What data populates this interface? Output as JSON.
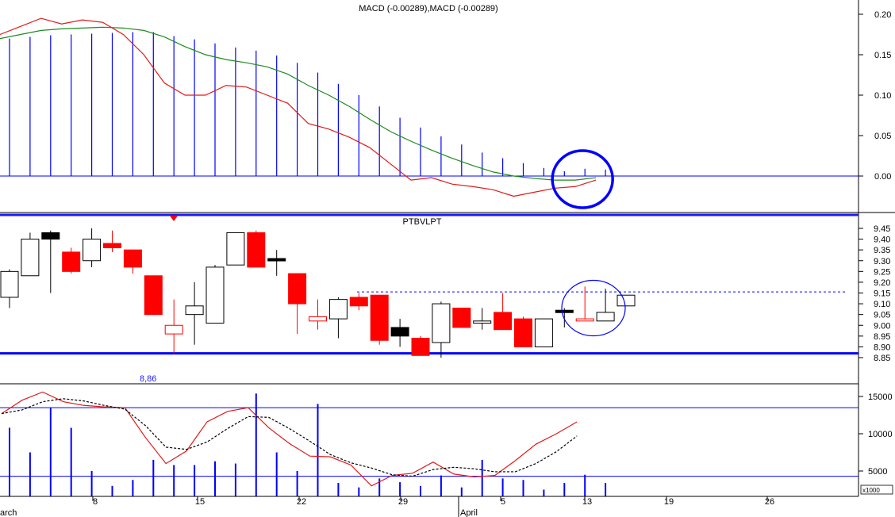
{
  "colors": {
    "accent_blue": "#0000ff",
    "red": "#ff0000",
    "line_red": "#e21a1a",
    "signal_green": "#1e8a1e",
    "grid": "#000000"
  },
  "chart_data": [
    {
      "type": "bar",
      "title": "MACD (-0.00289),MACD (-0.00289)",
      "ylim": [
        -0.05,
        0.22
      ],
      "yticks": [
        "0.20",
        "0.15",
        "0.10",
        "0.05",
        "0.00"
      ],
      "ytick_values": [
        0.2,
        0.15,
        0.1,
        0.05,
        0.0
      ],
      "histogram": [
        0.17,
        0.172,
        0.174,
        0.175,
        0.176,
        0.177,
        0.178,
        0.178,
        0.173,
        0.169,
        0.164,
        0.159,
        0.155,
        0.149,
        0.14,
        0.128,
        0.114,
        0.1,
        0.086,
        0.072,
        0.06,
        0.049,
        0.039,
        0.029,
        0.022,
        0.016,
        0.01,
        0.006,
        0.009,
        0.008
      ],
      "series": [
        {
          "color": "red",
          "values": [
            0.175,
            0.185,
            0.195,
            0.188,
            0.193,
            0.19,
            0.175,
            0.15,
            0.115,
            0.1,
            0.1,
            0.112,
            0.11,
            0.1,
            0.09,
            0.065,
            0.058,
            0.048,
            0.035,
            0.015,
            -0.005,
            -0.002,
            -0.01,
            -0.013,
            -0.017,
            -0.025,
            -0.02,
            -0.015,
            -0.013,
            -0.005
          ]
        },
        {
          "color": "green",
          "values": [
            0.17,
            0.175,
            0.18,
            0.182,
            0.183,
            0.184,
            0.183,
            0.18,
            0.172,
            0.16,
            0.15,
            0.144,
            0.14,
            0.135,
            0.126,
            0.112,
            0.1,
            0.086,
            0.07,
            0.055,
            0.043,
            0.032,
            0.022,
            0.013,
            0.005,
            0.0,
            -0.003,
            -0.005,
            -0.005,
            -0.002
          ]
        }
      ],
      "zero_line": 0.0,
      "annotation": {
        "type": "circle",
        "center_index": 28.5,
        "value": 0.0
      }
    },
    {
      "type": "candlestick",
      "title": "PTBVLPT",
      "ylim": [
        8.82,
        9.47
      ],
      "yticks": [
        "9.45",
        "9.40",
        "9.35",
        "9.30",
        "9.25",
        "9.20",
        "9.15",
        "9.10",
        "9.05",
        "9.00",
        "8.95",
        "8.90",
        "8.85"
      ],
      "ytick_values": [
        9.45,
        9.4,
        9.35,
        9.3,
        9.25,
        9.2,
        9.15,
        9.1,
        9.05,
        9.0,
        8.95,
        8.9,
        8.85
      ],
      "annotation_low": "8,86",
      "support": 8.87,
      "resistance": 9.155,
      "candles": [
        {
          "o": 9.13,
          "h": 9.26,
          "l": 9.08,
          "c": 9.25,
          "color": "white"
        },
        {
          "o": 9.23,
          "h": 9.43,
          "l": 9.23,
          "c": 9.4,
          "color": "white"
        },
        {
          "o": 9.43,
          "h": 9.44,
          "l": 9.15,
          "c": 9.4,
          "color": "black"
        },
        {
          "o": 9.34,
          "h": 9.36,
          "l": 9.24,
          "c": 9.25,
          "color": "red"
        },
        {
          "o": 9.3,
          "h": 9.45,
          "l": 9.27,
          "c": 9.4,
          "color": "white"
        },
        {
          "o": 9.38,
          "h": 9.44,
          "l": 9.34,
          "c": 9.36,
          "color": "red"
        },
        {
          "o": 9.35,
          "h": 9.35,
          "l": 9.24,
          "c": 9.27,
          "color": "red"
        },
        {
          "o": 9.23,
          "h": 9.23,
          "l": 9.05,
          "c": 9.05,
          "color": "red"
        },
        {
          "o": 9.0,
          "h": 9.12,
          "l": 8.87,
          "c": 8.96,
          "color": "red_outline"
        },
        {
          "o": 9.05,
          "h": 9.2,
          "l": 8.91,
          "c": 9.09,
          "color": "white"
        },
        {
          "o": 9.01,
          "h": 9.28,
          "l": 9.01,
          "c": 9.27,
          "color": "white"
        },
        {
          "o": 9.28,
          "h": 9.43,
          "l": 9.28,
          "c": 9.43,
          "color": "white"
        },
        {
          "o": 9.43,
          "h": 9.44,
          "l": 9.27,
          "c": 9.27,
          "color": "red"
        },
        {
          "o": 9.31,
          "h": 9.35,
          "l": 9.23,
          "c": 9.3,
          "color": "black"
        },
        {
          "o": 9.24,
          "h": 9.24,
          "l": 8.96,
          "c": 9.1,
          "color": "red"
        },
        {
          "o": 9.04,
          "h": 9.12,
          "l": 8.98,
          "c": 9.02,
          "color": "red_outline"
        },
        {
          "o": 9.03,
          "h": 9.13,
          "l": 8.94,
          "c": 9.12,
          "color": "white"
        },
        {
          "o": 9.13,
          "h": 9.15,
          "l": 9.07,
          "c": 9.09,
          "color": "red"
        },
        {
          "o": 9.14,
          "h": 9.14,
          "l": 8.91,
          "c": 8.93,
          "color": "red"
        },
        {
          "o": 8.99,
          "h": 9.03,
          "l": 8.9,
          "c": 8.95,
          "color": "black"
        },
        {
          "o": 8.94,
          "h": 8.95,
          "l": 8.86,
          "c": 8.86,
          "color": "red"
        },
        {
          "o": 8.92,
          "h": 9.11,
          "l": 8.85,
          "c": 9.1,
          "color": "white"
        },
        {
          "o": 9.08,
          "h": 9.08,
          "l": 8.99,
          "c": 8.99,
          "color": "red"
        },
        {
          "o": 9.02,
          "h": 9.08,
          "l": 8.98,
          "c": 9.01,
          "color": "white"
        },
        {
          "o": 9.06,
          "h": 9.15,
          "l": 8.98,
          "c": 8.98,
          "color": "red"
        },
        {
          "o": 9.03,
          "h": 9.04,
          "l": 8.9,
          "c": 8.9,
          "color": "red"
        },
        {
          "o": 8.9,
          "h": 9.03,
          "l": 8.9,
          "c": 9.03,
          "color": "white"
        },
        {
          "o": 9.07,
          "h": 9.08,
          "l": 8.99,
          "c": 9.07,
          "color": "black"
        },
        {
          "o": 9.03,
          "h": 9.18,
          "l": 9.02,
          "c": 9.02,
          "color": "red_outline"
        },
        {
          "o": 9.02,
          "h": 9.17,
          "l": 9.02,
          "c": 9.06,
          "color": "white"
        },
        {
          "o": 9.09,
          "h": 9.14,
          "l": 9.09,
          "c": 9.14,
          "color": "white"
        }
      ]
    },
    {
      "type": "bar",
      "title": "",
      "unit": "x1000",
      "ylim": [
        1500,
        16500
      ],
      "yticks": [
        "15000",
        "10000",
        "5000"
      ],
      "ytick_values": [
        15000,
        10000,
        5000
      ],
      "volume": [
        10800,
        7500,
        13500,
        10800,
        5000,
        3000,
        3800,
        6500,
        5800,
        5800,
        6300,
        6000,
        15400,
        7500,
        5000,
        14000,
        3400,
        2800,
        4000,
        3500,
        3000,
        4400,
        2800,
        6500,
        4000,
        3800,
        2500,
        3400,
        4500,
        3400
      ],
      "series": [
        {
          "color": "red",
          "values": [
            12700,
            14500,
            15600,
            14300,
            13800,
            13600,
            13500,
            9500,
            6000,
            7700,
            11600,
            13000,
            13500,
            10800,
            8700,
            7000,
            6900,
            5800,
            3000,
            4400,
            4700,
            6200,
            4600,
            4200,
            4400,
            6400,
            8600,
            10000,
            11600
          ]
        },
        {
          "style": "dashed",
          "values": [
            12700,
            13200,
            14300,
            14700,
            14400,
            13800,
            13300,
            11100,
            8200,
            7900,
            8900,
            10700,
            12300,
            12200,
            10700,
            9000,
            7200,
            6100,
            5400,
            4500,
            4300,
            5200,
            5500,
            5300,
            4900,
            4900,
            6000,
            7600,
            9700
          ]
        }
      ],
      "hlines": [
        13500,
        4300
      ]
    }
  ],
  "x_axis": {
    "labels": [
      "arch",
      "8",
      "15",
      "22",
      "29",
      "April",
      "5",
      "13",
      "19",
      "26"
    ],
    "ticks": [
      "8",
      "15",
      "22",
      "29",
      "5",
      "13",
      "19",
      "26"
    ]
  }
}
